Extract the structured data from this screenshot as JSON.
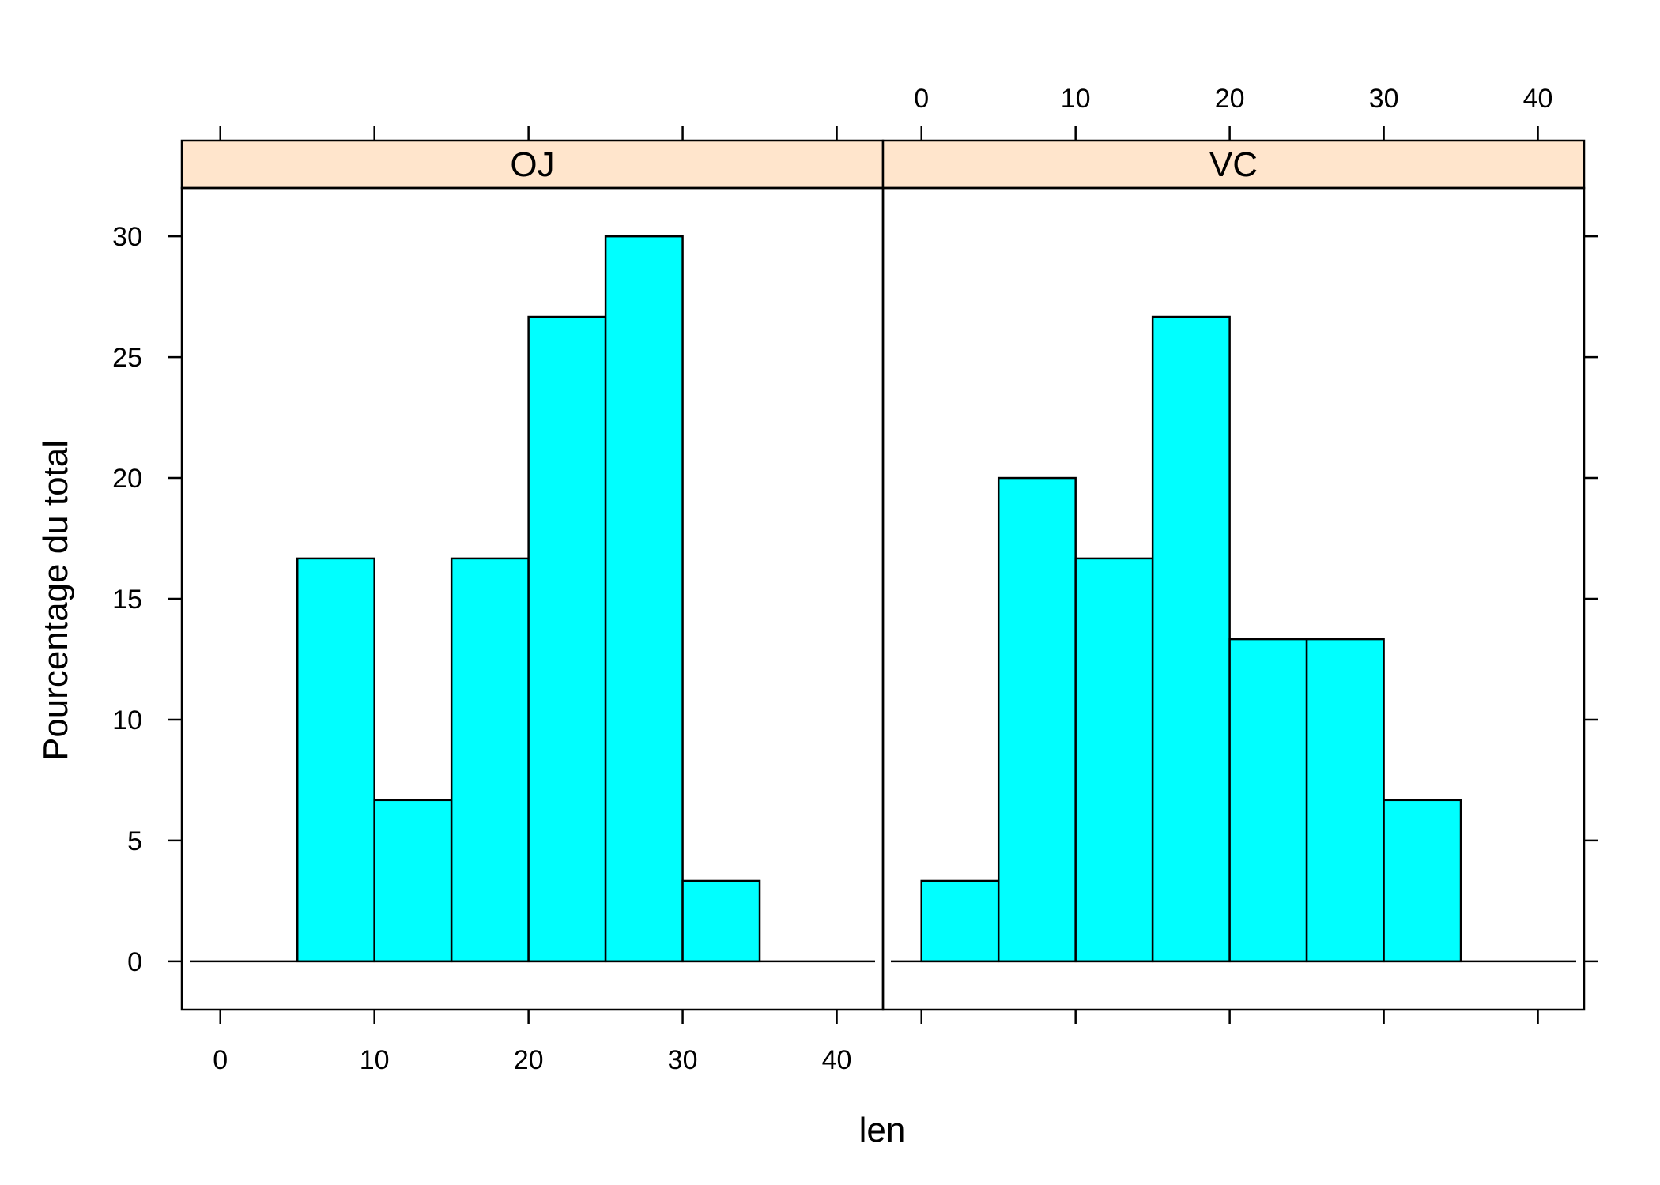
{
  "chart_data": {
    "type": "bar",
    "subtype": "histogram-trellis",
    "xlabel": "len",
    "ylabel": "Pourcentage du total",
    "xlim": [
      -2.5,
      43
    ],
    "ylim": [
      -2,
      32
    ],
    "x_ticks": [
      0,
      10,
      20,
      30,
      40
    ],
    "y_ticks": [
      0,
      5,
      10,
      15,
      20,
      25,
      30
    ],
    "bin_width": 5,
    "grid": false,
    "legend": "none",
    "colors": {
      "bar_fill": "#00FFFF",
      "strip_fill": "#FFE5CC",
      "stroke": "#000000"
    },
    "panels": [
      {
        "name": "OJ",
        "bins": [
          {
            "x0": 5,
            "x1": 10,
            "value": 16.67
          },
          {
            "x0": 10,
            "x1": 15,
            "value": 6.67
          },
          {
            "x0": 15,
            "x1": 20,
            "value": 16.67
          },
          {
            "x0": 20,
            "x1": 25,
            "value": 26.67
          },
          {
            "x0": 25,
            "x1": 30,
            "value": 30.0
          },
          {
            "x0": 30,
            "x1": 35,
            "value": 3.33
          }
        ]
      },
      {
        "name": "VC",
        "bins": [
          {
            "x0": 0,
            "x1": 5,
            "value": 3.33
          },
          {
            "x0": 5,
            "x1": 10,
            "value": 20.0
          },
          {
            "x0": 10,
            "x1": 15,
            "value": 16.67
          },
          {
            "x0": 15,
            "x1": 20,
            "value": 26.67
          },
          {
            "x0": 20,
            "x1": 25,
            "value": 13.33
          },
          {
            "x0": 25,
            "x1": 30,
            "value": 13.33
          },
          {
            "x0": 30,
            "x1": 35,
            "value": 6.67
          }
        ]
      }
    ]
  }
}
